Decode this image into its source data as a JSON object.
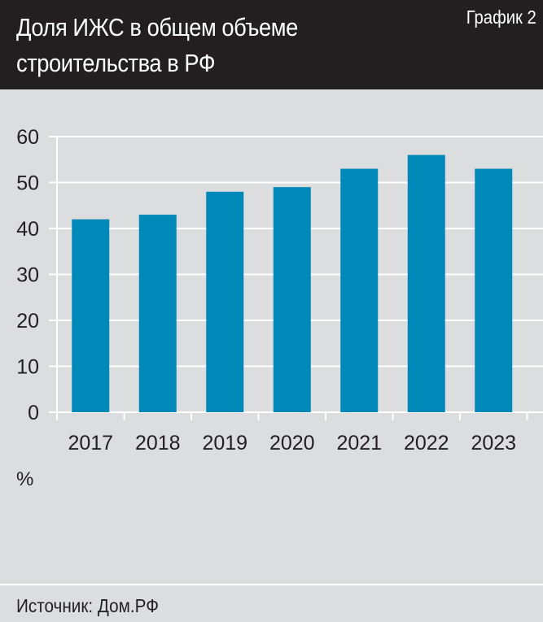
{
  "header": {
    "title": "Доля ИЖС в общем объеме строительства в РФ",
    "label": "График 2"
  },
  "footer": {
    "source": "Источник: Дом.РФ"
  },
  "chart_data": {
    "type": "bar",
    "title": "Доля ИЖС в общем объеме строительства в РФ",
    "categories": [
      "2017",
      "2018",
      "2019",
      "2020",
      "2021",
      "2022",
      "2023"
    ],
    "values": [
      42,
      43,
      48,
      49,
      53,
      56,
      53
    ],
    "ylabel": "%",
    "ylim": [
      0,
      60
    ],
    "yticks": [
      "0",
      "10",
      "20",
      "30",
      "40",
      "50",
      "60"
    ],
    "grid": true,
    "colors": {
      "bar": "#0088b9",
      "background": "#dcdddf",
      "header": "#231f20"
    }
  }
}
